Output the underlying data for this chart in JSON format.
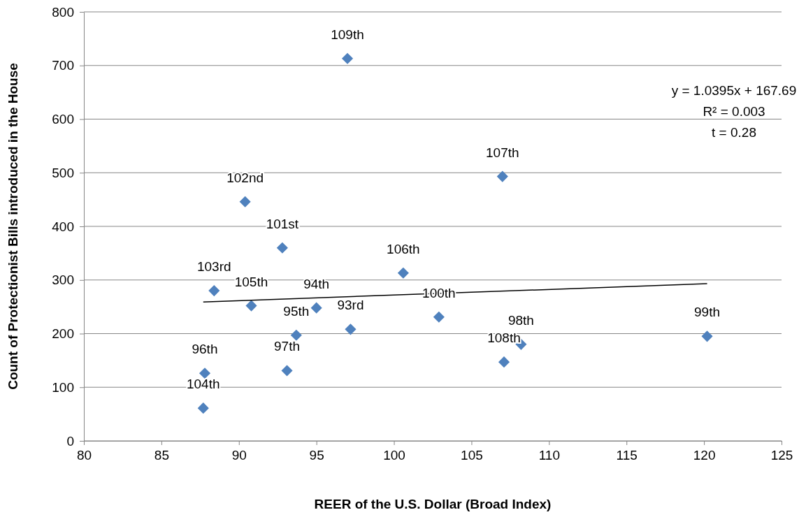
{
  "chart_data": {
    "type": "scatter",
    "xlabel": "REER of the U.S. Dollar (Broad Index)",
    "ylabel": "Count of Protectionist Bills introduced in the House",
    "xlim": [
      80,
      125
    ],
    "xticks": [
      80,
      85,
      90,
      95,
      100,
      105,
      110,
      115,
      120,
      125
    ],
    "ylim": [
      0,
      800
    ],
    "yticks": [
      0,
      100,
      200,
      300,
      400,
      500,
      600,
      700,
      800
    ],
    "grid": "y",
    "marker": "diamond",
    "annotations": [
      "y = 1.0395x + 167.69",
      "R² = 0.003",
      "t  = 0.28",
      {
        "text": "109th",
        "x": 97.0,
        "y": 713
      },
      {
        "text": "107th",
        "x": 107.0,
        "y": 493
      },
      {
        "text": "102nd",
        "x": 90.4,
        "y": 446
      },
      {
        "text": "101st",
        "x": 92.8,
        "y": 360
      },
      {
        "text": "106th",
        "x": 100.6,
        "y": 313
      },
      {
        "text": "103rd",
        "x": 88.4,
        "y": 280
      },
      {
        "text": "105th",
        "x": 90.8,
        "y": 252
      },
      {
        "text": "94th",
        "x": 95.0,
        "y": 248
      },
      {
        "text": "95th",
        "x": 93.7,
        "y": 197
      },
      {
        "text": "93rd",
        "x": 97.2,
        "y": 208
      },
      {
        "text": "100th",
        "x": 102.9,
        "y": 231
      },
      {
        "text": "98th",
        "x": 108.2,
        "y": 180
      },
      {
        "text": "108th",
        "x": 107.1,
        "y": 147
      },
      {
        "text": "99th",
        "x": 120.2,
        "y": 195
      },
      {
        "text": "96th",
        "x": 87.8,
        "y": 126
      },
      {
        "text": "97th",
        "x": 93.1,
        "y": 131
      },
      {
        "text": "104th",
        "x": 87.7,
        "y": 61
      }
    ],
    "series": [
      {
        "color": "#4f81bd",
        "x": [
          97.0,
          107.0,
          90.4,
          92.8,
          100.6,
          88.4,
          90.8,
          95.0,
          93.7,
          97.2,
          102.9,
          108.2,
          107.1,
          120.2,
          87.8,
          93.1,
          87.7
        ],
        "values": [
          713,
          493,
          446,
          360,
          313,
          280,
          252,
          248,
          197,
          208,
          231,
          180,
          147,
          195,
          126,
          131,
          61
        ]
      },
      {
        "type": "line",
        "color": "#000000",
        "marker": "none",
        "x": [
          87.7,
          120.2
        ],
        "values": [
          259,
          293
        ]
      }
    ]
  }
}
